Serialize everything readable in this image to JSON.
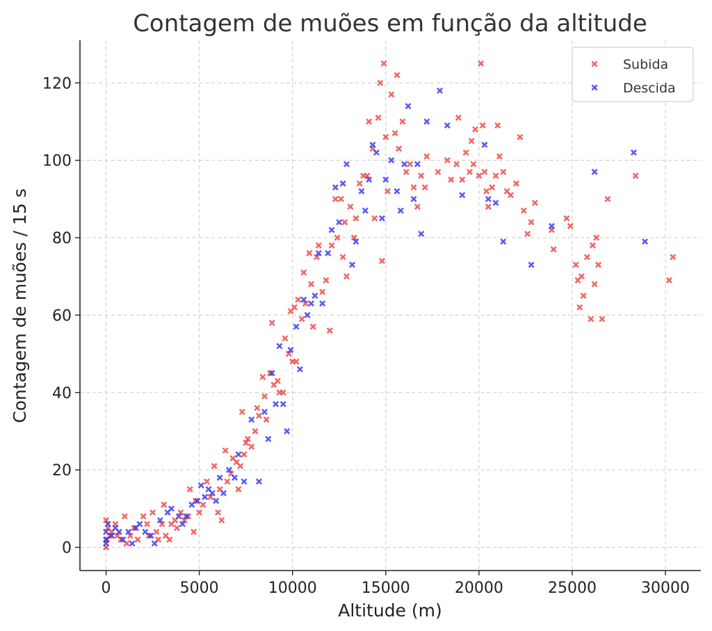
{
  "chart_data": {
    "type": "scatter",
    "title": "Contagem de muões em função da altitude",
    "xlabel": "Altitude (m)",
    "ylabel": "Contagem de muões / 15 s",
    "xlim": [
      -1400,
      31900
    ],
    "ylim": [
      -6,
      131
    ],
    "xticks": [
      0,
      5000,
      10000,
      15000,
      20000,
      25000,
      30000
    ],
    "yticks": [
      0,
      20,
      40,
      60,
      80,
      100,
      120
    ],
    "grid": true,
    "legend_position": "top-right",
    "marker": "x",
    "series": [
      {
        "name": "Subida",
        "color": "#ee3b3b",
        "points": [
          [
            0,
            7
          ],
          [
            0,
            0
          ],
          [
            50,
            2
          ],
          [
            100,
            5
          ],
          [
            200,
            3
          ],
          [
            300,
            4
          ],
          [
            500,
            6
          ],
          [
            600,
            3
          ],
          [
            800,
            2
          ],
          [
            1000,
            8
          ],
          [
            1100,
            1
          ],
          [
            1300,
            3
          ],
          [
            1500,
            5
          ],
          [
            1700,
            2
          ],
          [
            2000,
            8
          ],
          [
            2200,
            6
          ],
          [
            2300,
            3
          ],
          [
            2500,
            9
          ],
          [
            2700,
            4
          ],
          [
            2800,
            2
          ],
          [
            3000,
            6
          ],
          [
            3100,
            11
          ],
          [
            3200,
            3
          ],
          [
            3400,
            2
          ],
          [
            3500,
            6
          ],
          [
            3700,
            7
          ],
          [
            3800,
            5
          ],
          [
            4000,
            9
          ],
          [
            4200,
            7
          ],
          [
            4400,
            8
          ],
          [
            4500,
            15
          ],
          [
            4700,
            4
          ],
          [
            4800,
            12
          ],
          [
            5000,
            9
          ],
          [
            5200,
            11
          ],
          [
            5400,
            17
          ],
          [
            5600,
            13
          ],
          [
            5800,
            21
          ],
          [
            6000,
            9
          ],
          [
            6100,
            15
          ],
          [
            6200,
            7
          ],
          [
            6400,
            25
          ],
          [
            6500,
            17
          ],
          [
            6700,
            19
          ],
          [
            6800,
            23
          ],
          [
            7000,
            22
          ],
          [
            7100,
            15
          ],
          [
            7200,
            21
          ],
          [
            7300,
            35
          ],
          [
            7400,
            24
          ],
          [
            7500,
            27
          ],
          [
            7600,
            28
          ],
          [
            7800,
            26
          ],
          [
            8000,
            30
          ],
          [
            8100,
            36
          ],
          [
            8200,
            34
          ],
          [
            8400,
            44
          ],
          [
            8500,
            39
          ],
          [
            8600,
            33
          ],
          [
            8800,
            45
          ],
          [
            8900,
            58
          ],
          [
            9000,
            42
          ],
          [
            9200,
            43
          ],
          [
            9300,
            40
          ],
          [
            9500,
            40
          ],
          [
            9600,
            54
          ],
          [
            9800,
            50
          ],
          [
            9900,
            61
          ],
          [
            10000,
            48
          ],
          [
            10100,
            62
          ],
          [
            10200,
            48
          ],
          [
            10300,
            64
          ],
          [
            10500,
            59
          ],
          [
            10600,
            71
          ],
          [
            10700,
            63
          ],
          [
            10900,
            76
          ],
          [
            11000,
            68
          ],
          [
            11100,
            57
          ],
          [
            11300,
            75
          ],
          [
            11400,
            78
          ],
          [
            11600,
            66
          ],
          [
            11800,
            69
          ],
          [
            12000,
            56
          ],
          [
            12100,
            78
          ],
          [
            12300,
            90
          ],
          [
            12400,
            80
          ],
          [
            12600,
            90
          ],
          [
            12700,
            75
          ],
          [
            12800,
            84
          ],
          [
            12900,
            70
          ],
          [
            13100,
            88
          ],
          [
            13300,
            80
          ],
          [
            13400,
            85
          ],
          [
            13600,
            94
          ],
          [
            13800,
            96
          ],
          [
            14000,
            96
          ],
          [
            14100,
            110
          ],
          [
            14300,
            103
          ],
          [
            14400,
            85
          ],
          [
            14600,
            111
          ],
          [
            14700,
            120
          ],
          [
            14800,
            74
          ],
          [
            14900,
            125
          ],
          [
            15000,
            106
          ],
          [
            15100,
            92
          ],
          [
            15300,
            117
          ],
          [
            15500,
            107
          ],
          [
            15600,
            122
          ],
          [
            15700,
            103
          ],
          [
            15900,
            110
          ],
          [
            16100,
            97
          ],
          [
            16300,
            99
          ],
          [
            16500,
            93
          ],
          [
            16700,
            88
          ],
          [
            16900,
            96
          ],
          [
            17100,
            93
          ],
          [
            17200,
            101
          ],
          [
            17800,
            97
          ],
          [
            18300,
            100
          ],
          [
            18500,
            95
          ],
          [
            18800,
            99
          ],
          [
            18900,
            111
          ],
          [
            19100,
            95
          ],
          [
            19300,
            102
          ],
          [
            19500,
            97
          ],
          [
            19600,
            105
          ],
          [
            19700,
            99
          ],
          [
            19800,
            108
          ],
          [
            20000,
            96
          ],
          [
            20100,
            125
          ],
          [
            20200,
            109
          ],
          [
            20300,
            97
          ],
          [
            20400,
            92
          ],
          [
            20500,
            88
          ],
          [
            20700,
            93
          ],
          [
            20900,
            96
          ],
          [
            21000,
            109
          ],
          [
            21100,
            101
          ],
          [
            21300,
            97
          ],
          [
            21500,
            92
          ],
          [
            21700,
            91
          ],
          [
            22000,
            94
          ],
          [
            22200,
            106
          ],
          [
            22400,
            87
          ],
          [
            22600,
            81
          ],
          [
            22800,
            84
          ],
          [
            23000,
            89
          ],
          [
            23900,
            82
          ],
          [
            24000,
            77
          ],
          [
            24700,
            85
          ],
          [
            24900,
            83
          ],
          [
            25200,
            73
          ],
          [
            25300,
            69
          ],
          [
            25400,
            62
          ],
          [
            25500,
            70
          ],
          [
            25600,
            65
          ],
          [
            25800,
            75
          ],
          [
            26000,
            59
          ],
          [
            26100,
            78
          ],
          [
            26200,
            68
          ],
          [
            26300,
            80
          ],
          [
            26400,
            73
          ],
          [
            26600,
            59
          ],
          [
            26900,
            90
          ],
          [
            28400,
            96
          ],
          [
            30200,
            69
          ],
          [
            30400,
            75
          ]
        ]
      },
      {
        "name": "Descida",
        "color": "#2b2bf0",
        "points": [
          [
            0,
            1
          ],
          [
            0,
            2
          ],
          [
            0,
            4
          ],
          [
            100,
            6
          ],
          [
            300,
            3
          ],
          [
            500,
            5
          ],
          [
            700,
            4
          ],
          [
            900,
            2
          ],
          [
            1200,
            4
          ],
          [
            1400,
            1
          ],
          [
            1600,
            5
          ],
          [
            1800,
            6
          ],
          [
            2100,
            4
          ],
          [
            2400,
            3
          ],
          [
            2600,
            1
          ],
          [
            2900,
            7
          ],
          [
            3300,
            9
          ],
          [
            3500,
            10
          ],
          [
            3900,
            8
          ],
          [
            4100,
            6
          ],
          [
            4300,
            8
          ],
          [
            4600,
            11
          ],
          [
            4900,
            12
          ],
          [
            5100,
            16
          ],
          [
            5300,
            13
          ],
          [
            5500,
            15
          ],
          [
            5700,
            14
          ],
          [
            5900,
            12
          ],
          [
            6100,
            18
          ],
          [
            6300,
            14
          ],
          [
            6600,
            20
          ],
          [
            6900,
            18
          ],
          [
            7100,
            24
          ],
          [
            7400,
            17
          ],
          [
            7800,
            33
          ],
          [
            8200,
            17
          ],
          [
            8500,
            35
          ],
          [
            8700,
            28
          ],
          [
            8900,
            45
          ],
          [
            9100,
            37
          ],
          [
            9300,
            52
          ],
          [
            9500,
            37
          ],
          [
            9700,
            30
          ],
          [
            9900,
            51
          ],
          [
            10200,
            57
          ],
          [
            10400,
            46
          ],
          [
            10600,
            64
          ],
          [
            10800,
            60
          ],
          [
            11000,
            63
          ],
          [
            11200,
            65
          ],
          [
            11400,
            76
          ],
          [
            11600,
            63
          ],
          [
            11900,
            76
          ],
          [
            12100,
            82
          ],
          [
            12300,
            93
          ],
          [
            12500,
            84
          ],
          [
            12700,
            94
          ],
          [
            12900,
            99
          ],
          [
            13200,
            73
          ],
          [
            13400,
            79
          ],
          [
            13700,
            92
          ],
          [
            13900,
            87
          ],
          [
            14100,
            95
          ],
          [
            14300,
            104
          ],
          [
            14500,
            102
          ],
          [
            14800,
            85
          ],
          [
            15000,
            95
          ],
          [
            15300,
            100
          ],
          [
            15600,
            92
          ],
          [
            15800,
            87
          ],
          [
            16000,
            99
          ],
          [
            16200,
            114
          ],
          [
            16500,
            90
          ],
          [
            16700,
            99
          ],
          [
            16900,
            81
          ],
          [
            17200,
            110
          ],
          [
            17900,
            118
          ],
          [
            18300,
            109
          ],
          [
            19100,
            91
          ],
          [
            20300,
            104
          ],
          [
            20500,
            90
          ],
          [
            20900,
            89
          ],
          [
            21300,
            79
          ],
          [
            22800,
            73
          ],
          [
            23900,
            83
          ],
          [
            26200,
            97
          ],
          [
            28300,
            102
          ],
          [
            28900,
            79
          ]
        ]
      }
    ]
  }
}
